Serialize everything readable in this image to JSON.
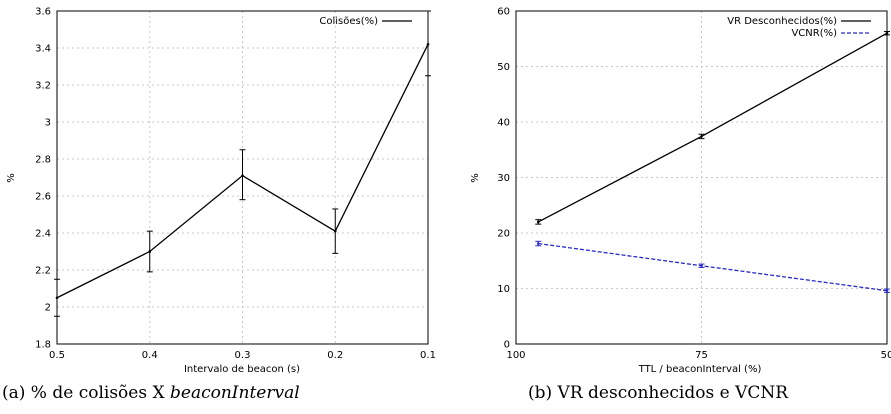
{
  "colors": {
    "series_black": "#000000",
    "series_blue": "#2a2ac8"
  },
  "chart_data": [
    {
      "type": "line",
      "title": "",
      "xlabel": "Intervalo de beacon (s)",
      "ylabel": "%",
      "x": [
        "0.5",
        "0.4",
        "0.3",
        "0.2",
        "0.1"
      ],
      "xlim": [
        0.5,
        0.1
      ],
      "ylim": [
        1.8,
        3.6
      ],
      "yticks": [
        "1.8",
        "2",
        "2.2",
        "2.4",
        "2.6",
        "2.8",
        "3",
        "3.2",
        "3.4",
        "3.6"
      ],
      "grid": true,
      "legend": "top-right",
      "series": [
        {
          "name": "Colisões(%)",
          "x": [
            0.5,
            0.4,
            0.3,
            0.2,
            0.1
          ],
          "values": [
            2.05,
            2.3,
            2.71,
            2.41,
            3.42
          ],
          "err_low": [
            1.95,
            2.19,
            2.58,
            2.29,
            3.25
          ],
          "err_high": [
            2.15,
            2.41,
            2.85,
            2.53,
            3.6
          ]
        }
      ],
      "caption": "(a) % de colisões X beaconInterval"
    },
    {
      "type": "line",
      "title": "",
      "xlabel": "TTL / beaconInterval (%)",
      "ylabel": "%",
      "x": [
        "100",
        "75",
        "50"
      ],
      "xlim": [
        100,
        50
      ],
      "ylim": [
        0,
        60
      ],
      "yticks": [
        "0",
        "10",
        "20",
        "30",
        "40",
        "50",
        "60"
      ],
      "grid": true,
      "legend": "top-right",
      "series": [
        {
          "name": "VR Desconhecidos(%)",
          "x": [
            97,
            75,
            50
          ],
          "values": [
            22.0,
            37.4,
            56.0
          ],
          "err_low": [
            21.6,
            37.0,
            55.7
          ],
          "err_high": [
            22.4,
            37.8,
            56.3
          ]
        },
        {
          "name": "VCNR(%)",
          "x": [
            97,
            75,
            50
          ],
          "values": [
            18.1,
            14.1,
            9.6
          ],
          "err_low": [
            17.7,
            13.8,
            9.3
          ],
          "err_high": [
            18.5,
            14.4,
            9.9
          ]
        }
      ],
      "caption": "(b) VR desconhecidos e VCNR"
    }
  ]
}
